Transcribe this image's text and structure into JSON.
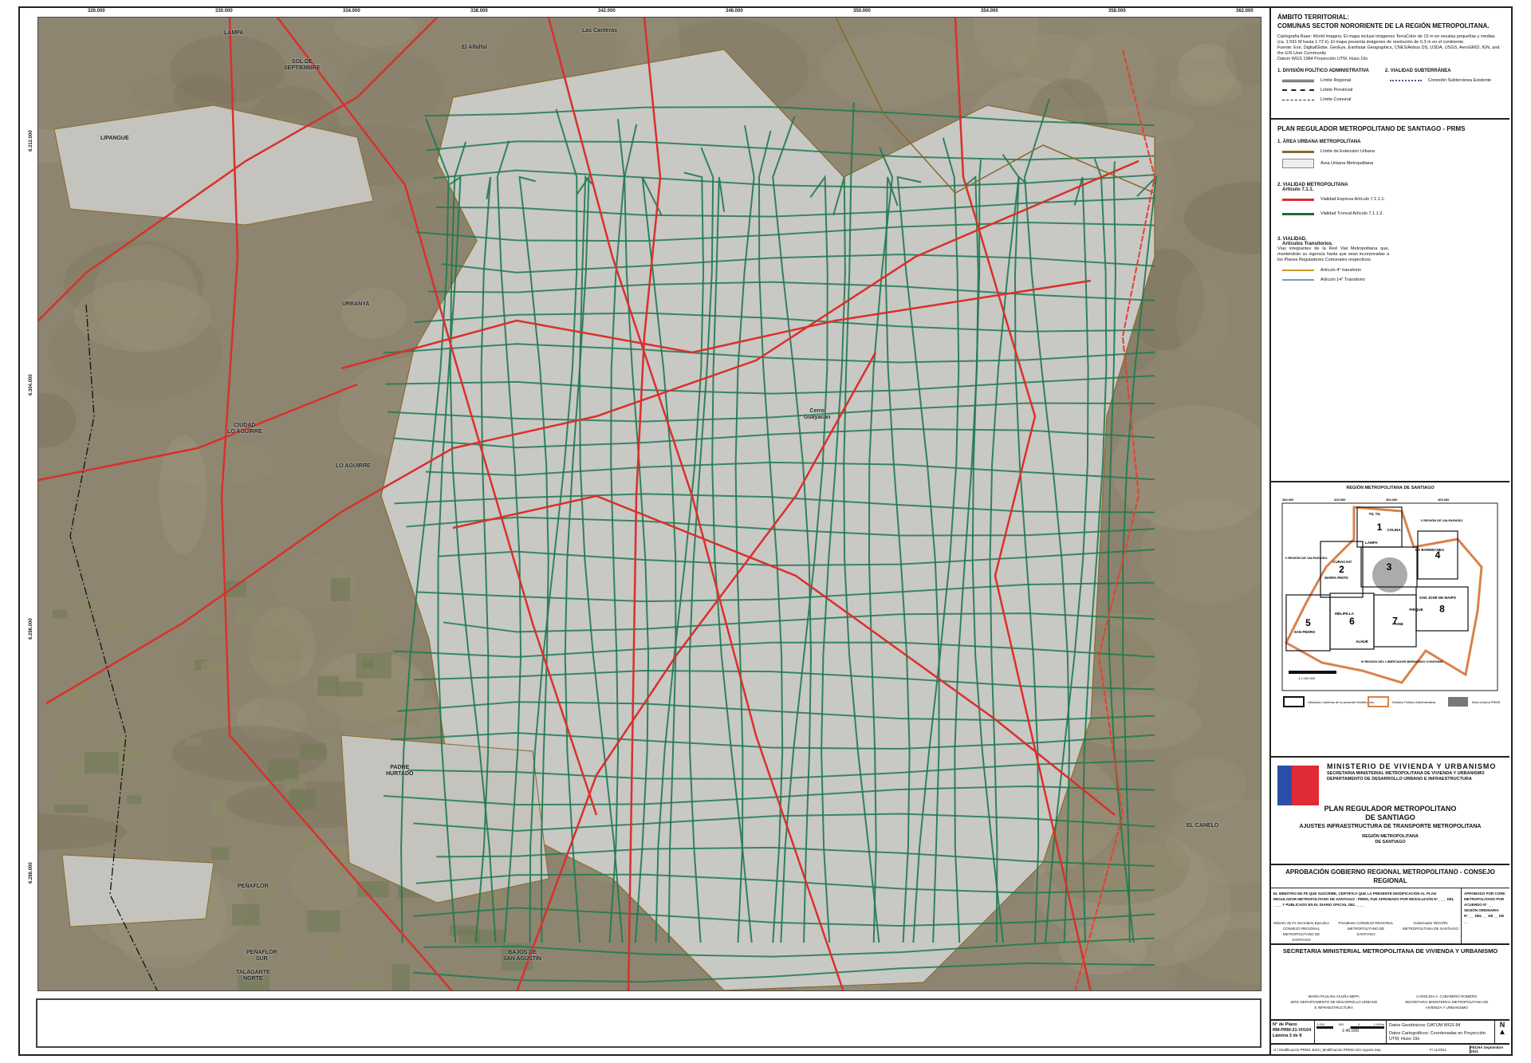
{
  "map": {
    "x_ticks": [
      "326.000",
      "330.000",
      "334.000",
      "338.000",
      "342.000",
      "346.000",
      "350.000",
      "354.000",
      "358.000",
      "362.000"
    ],
    "y_ticks": [
      "6.312.000",
      "6.304.000",
      "6.296.000",
      "6.288.000"
    ],
    "places": [
      "LAMPA",
      "SOL DE\nSEPTIEMBRE",
      "LIPANGUE",
      "El Alfalfal",
      "Las Canteras",
      "URBANYA",
      "CIUDAD\nLO AGUIRRE",
      "LO AGUIRRE",
      "PADRE\nHURTADO",
      "PEÑAFLOR",
      "PEÑAFLOR\nSUR",
      "TALAGANTE\nNORTE",
      "BAJOS DE\nSAN AGUSTÍN",
      "Cerro\nGuayacán",
      "EL CANELO"
    ],
    "colors": {
      "expressway": "#d8312b",
      "trunk": "#1f7a4f",
      "urban_limit": "#8a6a2a",
      "urban_area": "#c8c8c5",
      "terrain": "#8d8570"
    }
  },
  "legend": {
    "ambito_title": "ÁMBITO TERRITORIAL:",
    "ambito_sub": "COMUNAS SECTOR NORORIENTE DE LA REGIÓN METROPOLITANA.",
    "cartography": "Cartografía Base: World Imagery. El mapa incluye imágenes TerraColor de 15 m en escalas pequeñas y medias (ca. 1:591 M hasta 1:72 k). El mapa presenta imágenes de resolución de 0,3 m en el continente.",
    "source": "Fuente: Esri, DigitalGlobe, GeoEye, Earthstar Geographics, CNES/Airbus DS, USDA, USGS, AeroGRID, IGN, and the GIS User Community",
    "datum": "Datum WGS 1984 Proyección UTM, Huso 19s",
    "s1_title": "1. DIVISIÓN POLÍTICO ADMINISTRATIVA",
    "s1_items": [
      "Límite Regional",
      "Límite Provincial",
      "Límite Comunal"
    ],
    "s2_title": "2. VIALIDAD SUBTERRÁNEA",
    "s2_items": [
      "Conexión Subterránea Existente"
    ],
    "prms_title": "PLAN REGULADOR METROPOLITANO DE SANTIAGO - PRMS",
    "p1_title": "1. ÁREA URBANA METROPOLITANA",
    "p1_items": [
      "Límite de Extensión Urbana",
      "Área Urbana Metropolitana"
    ],
    "p2_title": "2. VIALIDAD METROPOLITANA",
    "p2_sub": "Artículo 7.1.1.",
    "p2_items": [
      "Vialidad Expresa Artículo 7.1.1.1.",
      "Vialidad Troncal Artículo 7.1.1.2."
    ],
    "p3_title": "3. VIALIDAD.",
    "p3_sub": "Artículos Transitorios.",
    "p3_text": "Vías integrantes de la Red Vial Metropolitana que, mantendrán su vigencia hasta que sean incorporadas a los Planes Reguladores Comunales respectivos.",
    "p3_items": [
      "Artículo 4° transitorio",
      "Artículo 14° Transitorio"
    ]
  },
  "inset": {
    "title": "REGIÓN METROPOLITANA DE SANTIAGO",
    "ticks": [
      "280.000",
      "320.000",
      "360.000",
      "400.000"
    ],
    "zones": [
      "1",
      "2",
      "3",
      "4",
      "5",
      "6",
      "7",
      "8"
    ],
    "communes": [
      "TIL TIL",
      "COLINA",
      "LAMPA",
      "CURACAVÍ",
      "MARÍA PINTO",
      "LO BARNECHEA",
      "SAN JOSÉ DE MAIPO",
      "MELIPILLA",
      "SAN PEDRO",
      "ALHUÉ",
      "PAINE",
      "PIRQUE"
    ],
    "neighbors": [
      "V REGIÓN DE VALPARAÍSO",
      "V REGIÓN DE VALPARAÍSO",
      "VI REGIÓN DEL LIBERTADOR BERNARDO O'HIGGINS"
    ],
    "scale": "1:1.000.000",
    "legend": [
      "Ubicación Láminas de la presente Modificación",
      "División Político Administrativa",
      "Área Urbana PRMS"
    ]
  },
  "ministry": {
    "name": "MINISTERIO DE VIVIENDA Y URBANISMO",
    "seremi": "SECRETARIA MINISTERIAL METROPOLITANA DE VIVIENDA Y URBANISMO",
    "dept": "DEPARTAMENTO DE DESARROLLO URBANO E INFRAESTRUCTURA",
    "plan1": "PLAN REGULADOR METROPOLITANO",
    "plan2": "DE SANTIAGO",
    "adjust": "AJUSTES INFRAESTRUCTURA DE TRANSPORTE METROPOLITANA",
    "region1": "REGIÓN METROPOLITANA",
    "region2": "DE SANTIAGO",
    "logo_text": "SEREMI Metropolitana"
  },
  "approval": {
    "title": "APROBACIÓN GOBIERNO REGIONAL METROPOLITANO - CONSEJO REGIONAL",
    "text": "EL MINISTRO DE FE QUE SUSCRIBE, CERTIFICA QUE LA PRESENTE MODIFICACIÓN AL PLAN REGULADOR METROPOLITANO DE SANTIAGO - PRMS, FUE APROBADO POR RESOLUCIÓN N°____ DEL ____ Y PUBLICADO EN EL DIARIO OFICIAL DEL ____",
    "side": "APROBADO POR CORE METROPOLITANO POR ACUERDO N°___ SESIÓN ORDINARIA N°___ DEL __ DE __ DE __",
    "signers": [
      "Ministro de Fe Secretario Ejecutivo CONSEJO REGIONAL METROPOLITANO DE SANTIAGO",
      "Presidente CONSEJO REGIONAL METROPOLITANO DE SANTIAGO",
      "Gobernador REGIÓN METROPOLITANA DE SANTIAGO"
    ],
    "seremi_title": "SECRETARIA MINISTERIAL METROPOLITANA DE VIVIENDA Y URBANISMO",
    "sig1": "MARÍA PAULINA ACUÑA MEPA\nJEFE DEPARTAMENTO DE DESARROLLO URBANO E INFRAESTRUCTURA",
    "sig2": "CAROLINA A. CABAÑERO ROMERO\nSECRETARIA MINISTERIAL METROPOLITANA DE VIVIENDA Y URBANISMO"
  },
  "plate": {
    "label": "N° de Plano",
    "number": "RM-PRM-21-VI/104",
    "sheet": "Lámina 3 de 8",
    "scale_ticks": [
      "1.000",
      "500",
      "0",
      "1.000m"
    ],
    "scale": "1:40.000",
    "geodetic": "Datos Geodésicos: DATUM WGS 84",
    "carto": "Datos Cartográficos: Coordenadas en Proyección UTM, Huso 19s",
    "path": "G:\\ Modificación PRMS 2021\\_Modificación PRMS-104-Agosto-Sep",
    "code": "F/ 11/2021",
    "date_label": "FECHA",
    "date": "Septiembre 2021",
    "north": "N"
  }
}
